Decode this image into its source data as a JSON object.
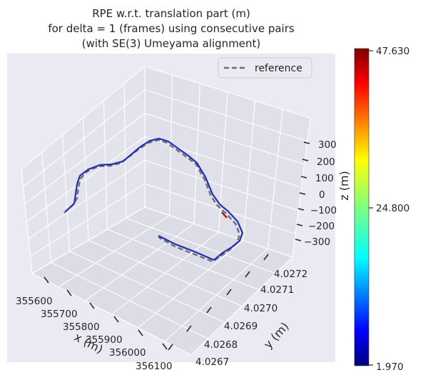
{
  "chart_data": {
    "type": "line",
    "projection": "3d",
    "title": [
      "RPE w.r.t. translation part (m)",
      "for delta = 1 (frames) using consecutive pairs",
      "(with SE(3) Umeyama alignment)"
    ],
    "xlabel": "x (m)",
    "ylabel": "y (m)",
    "zlabel": "z (m)",
    "x_ticks": [
      "355600",
      "355700",
      "355800",
      "355900",
      "356000",
      "356100"
    ],
    "y_ticks": [
      "4.0267",
      "4.0268",
      "4.0269",
      "4.0270",
      "4.0271",
      "4.0272"
    ],
    "z_ticks": [
      "300",
      "200",
      "100",
      "0",
      "−100",
      "−200",
      "−300"
    ],
    "legend": {
      "entries": [
        "reference"
      ],
      "placement": "top-right"
    },
    "colorbar": {
      "colormap": "jet",
      "min": 1.97,
      "max": 47.63,
      "tick_labels": [
        "47.630",
        "24.800",
        "1.970"
      ]
    },
    "grid": true,
    "colors": {
      "background": "#eaeaf2",
      "grid": "#ffffff",
      "reference": "#6f6f6f",
      "trajectory": "#1f2fb5",
      "text": "#262626"
    }
  }
}
